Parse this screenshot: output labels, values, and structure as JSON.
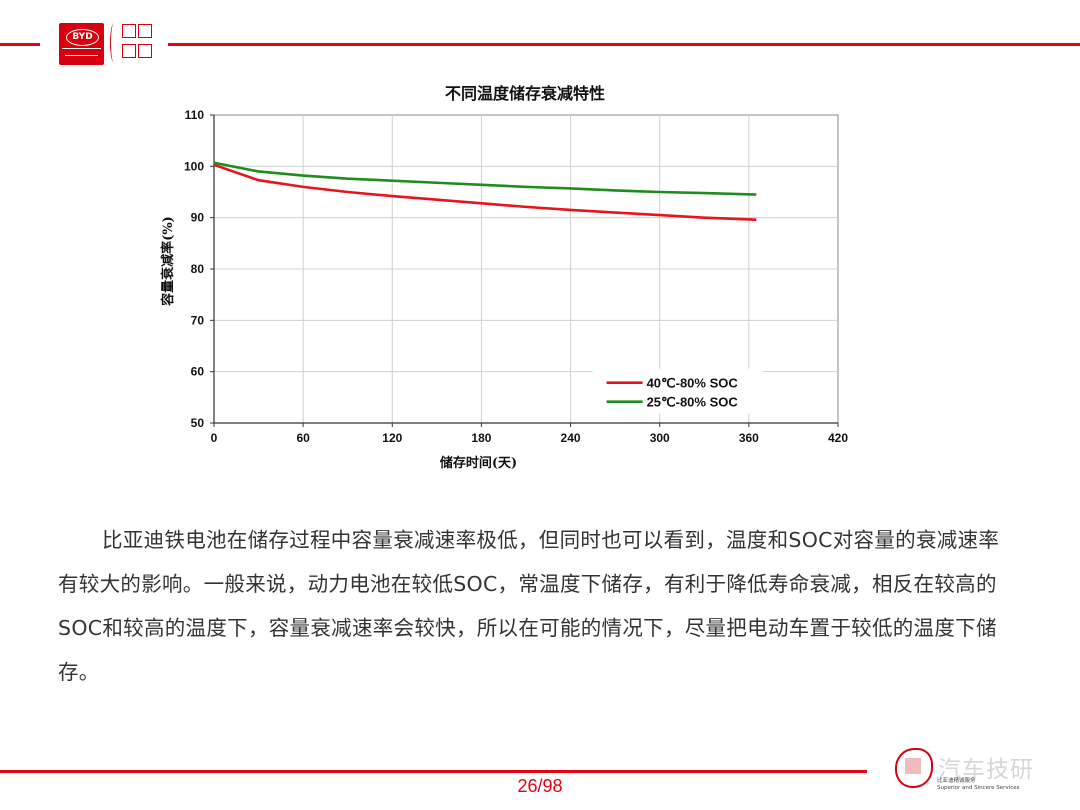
{
  "page": {
    "page_number": "26/98"
  },
  "header": {
    "brand_logo": "byd-logo",
    "brand_text": "BYD",
    "slogan_icon": "slogan-seal"
  },
  "chart_data": {
    "type": "line",
    "title": "不同温度储存衰减特性",
    "xlabel": "储存时间(天)",
    "ylabel": "容量衰减率(%)",
    "xlim": [
      0,
      420
    ],
    "ylim": [
      50,
      110
    ],
    "xticks": [
      0,
      60,
      120,
      180,
      240,
      300,
      360,
      420
    ],
    "yticks": [
      50,
      60,
      70,
      80,
      90,
      100,
      110
    ],
    "grid": true,
    "legend_position": "bottom-right",
    "series": [
      {
        "name": "40℃-80% SOC",
        "color": "#e8141b",
        "x": [
          0,
          30,
          60,
          90,
          120,
          150,
          180,
          210,
          240,
          270,
          300,
          330,
          365
        ],
        "y": [
          100.3,
          97.3,
          96.0,
          95.0,
          94.2,
          93.5,
          92.8,
          92.1,
          91.5,
          91.0,
          90.5,
          90.0,
          89.6
        ]
      },
      {
        "name": "25℃-80% SOC",
        "color": "#1e8c1e",
        "x": [
          0,
          30,
          60,
          90,
          120,
          150,
          180,
          210,
          240,
          270,
          300,
          330,
          365
        ],
        "y": [
          100.7,
          99.0,
          98.2,
          97.6,
          97.2,
          96.8,
          96.4,
          96.0,
          95.7,
          95.3,
          95.0,
          94.8,
          94.5
        ]
      }
    ]
  },
  "body": {
    "paragraph": "比亚迪铁电池在储存过程中容量衰减速率极低，但同时也可以看到，温度和SOC对容量的衰减速率有较大的影响。一般来说，动力电池在较低SOC，常温度下储存，有利于降低寿命衰减，相反在较高的SOC和较高的温度下，容量衰减速率会较快，所以在可能的情况下，尽量把电动车置于较低的温度下储存。"
  },
  "footer": {
    "watermark": "汽车技研",
    "service_text_1": "比亚迪精诚服务",
    "service_text_2": "Superior and Sincere Services"
  }
}
